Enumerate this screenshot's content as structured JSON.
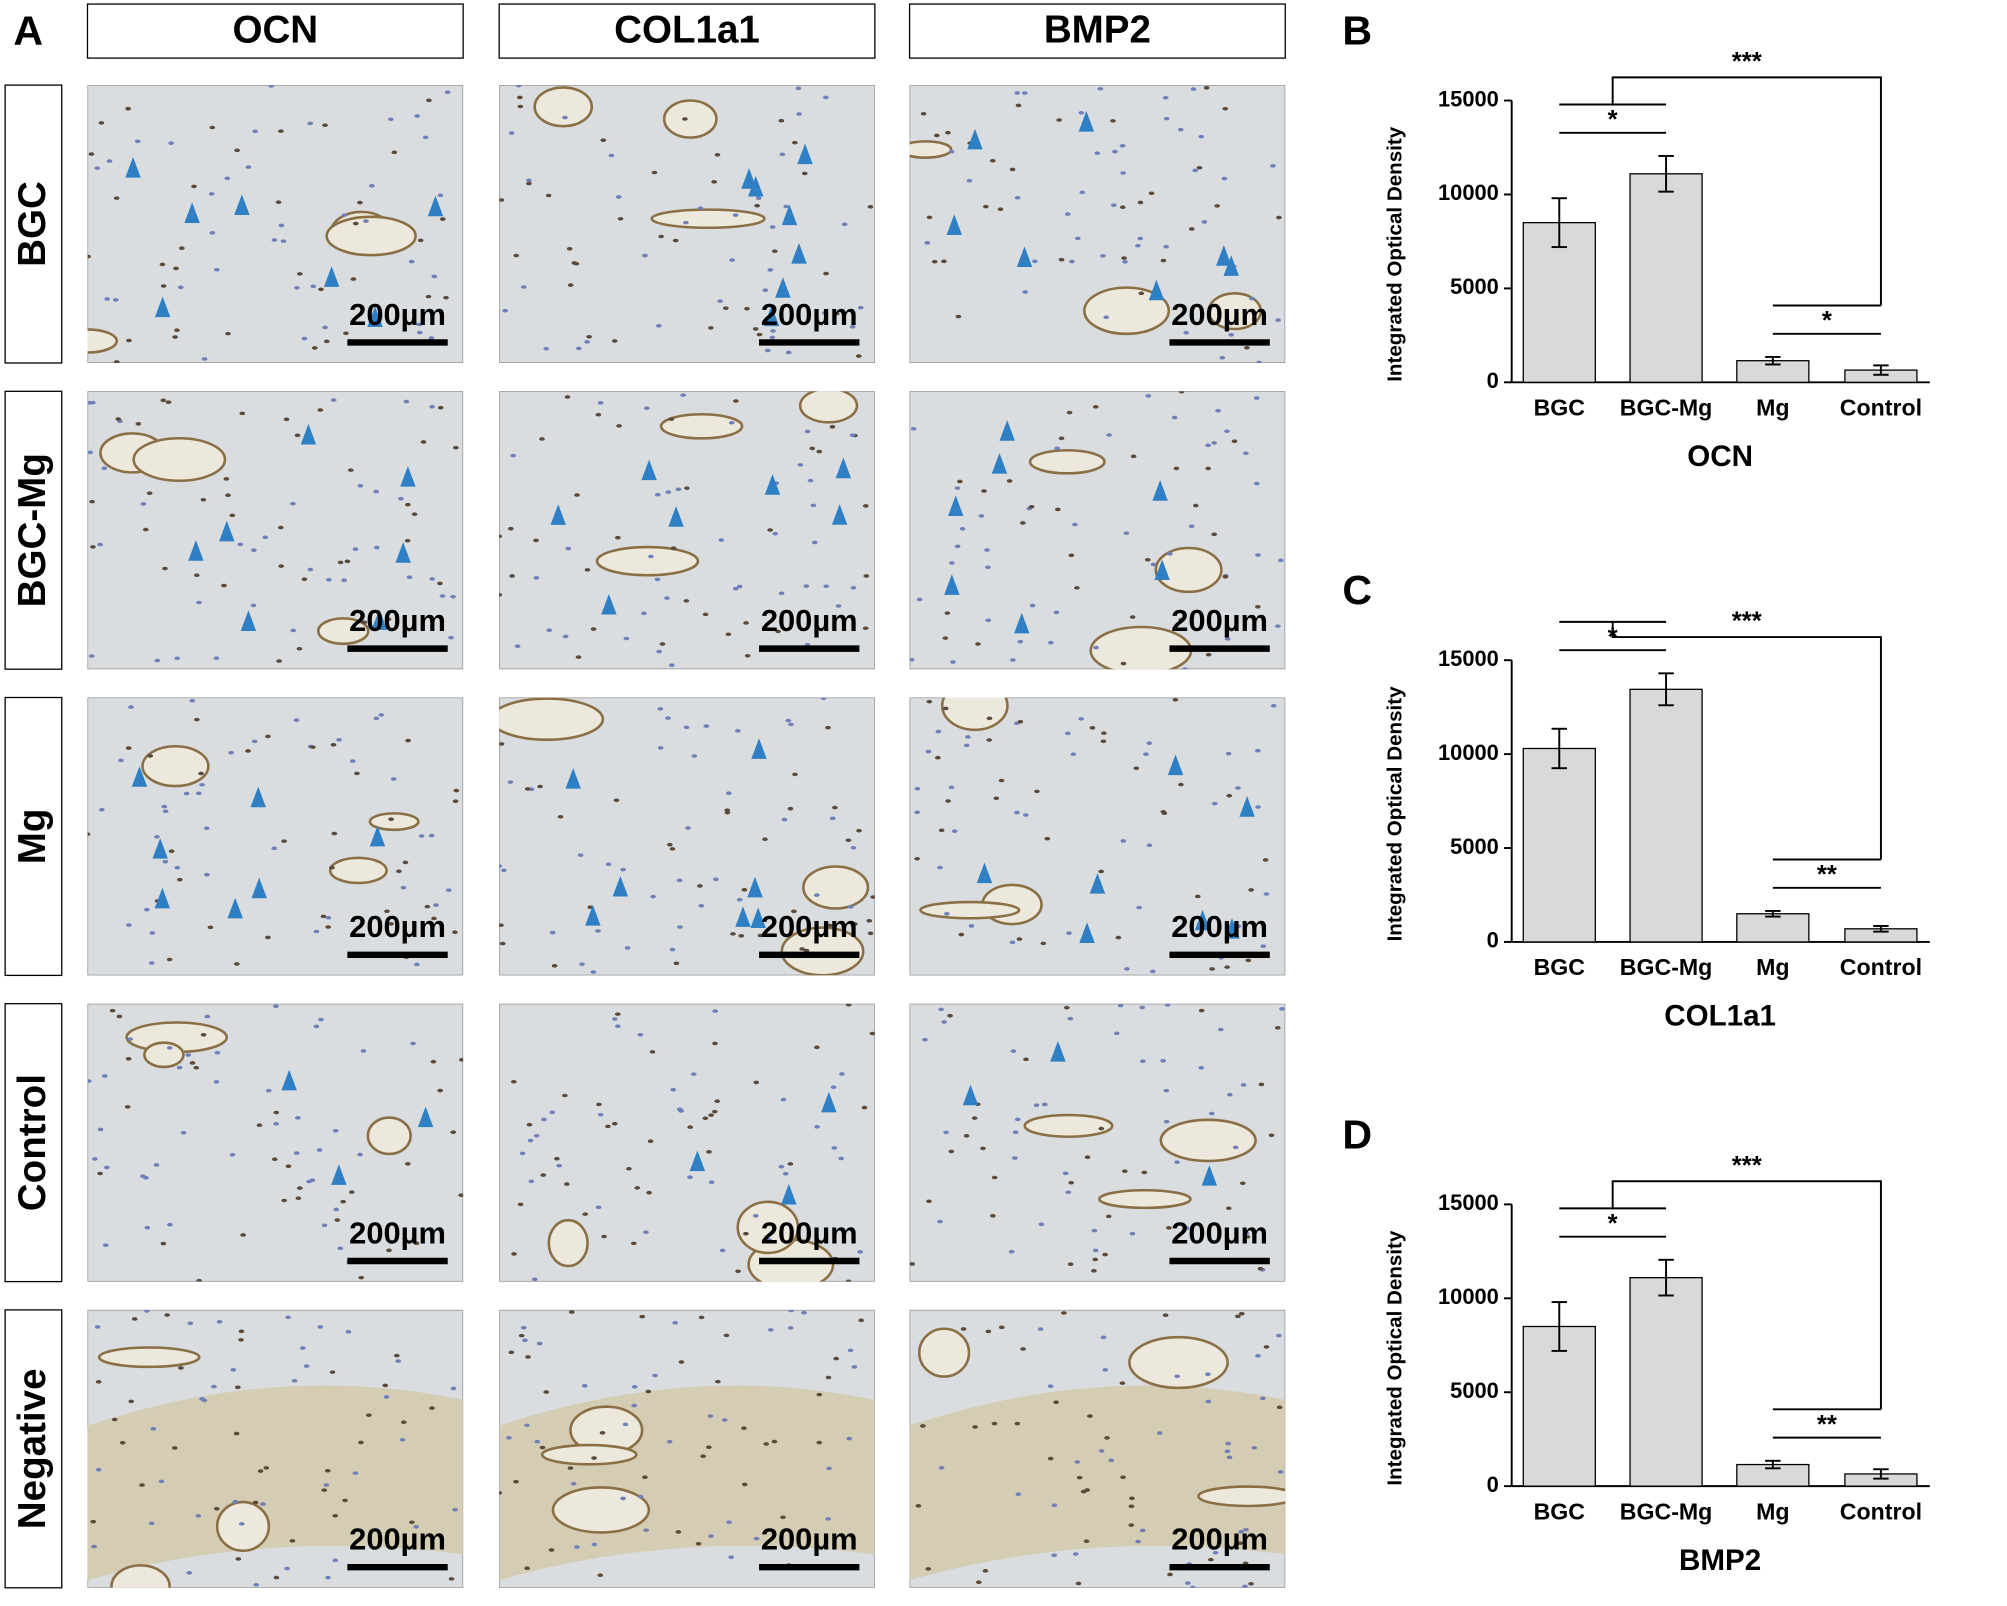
{
  "panel_a": {
    "label": "A",
    "columns": [
      "OCN",
      "COL1a1",
      "BMP2"
    ],
    "rows": [
      "BGC",
      "BGC-Mg",
      "Mg",
      "Control",
      "Negative"
    ],
    "scale_bar": "200µm"
  },
  "chart_data": [
    {
      "type": "bar",
      "panel": "B",
      "x_label": "OCN",
      "y_label": "Integrated Optical Density",
      "categories": [
        "BGC",
        "BGC-Mg",
        "Mg",
        "Control"
      ],
      "values": [
        8500,
        11100,
        1150,
        650
      ],
      "errors": [
        1300,
        950,
        200,
        250
      ],
      "color": "#d9d9d9",
      "ylim": [
        0,
        15000
      ],
      "yticks": [
        0,
        5000,
        10000,
        15000
      ],
      "pairs": [
        {
          "between": [
            "BGC",
            "BGC-Mg"
          ],
          "label": "*"
        },
        {
          "between": [
            "Mg",
            "Control"
          ],
          "label": "*"
        }
      ],
      "group_comparison": {
        "between": [
          [
            "BGC",
            "BGC-Mg"
          ],
          [
            "Mg",
            "Control"
          ]
        ],
        "label": "***"
      }
    },
    {
      "type": "bar",
      "panel": "C",
      "x_label": "COL1a1",
      "y_label": "Integrated Optical Density",
      "categories": [
        "BGC",
        "BGC-Mg",
        "Mg",
        "Control"
      ],
      "values": [
        10300,
        13450,
        1500,
        700
      ],
      "errors": [
        1050,
        850,
        150,
        150
      ],
      "color": "#d9d9d9",
      "ylim": [
        0,
        15000
      ],
      "yticks": [
        0,
        5000,
        10000,
        15000
      ],
      "pairs": [
        {
          "between": [
            "BGC",
            "BGC-Mg"
          ],
          "label": "*"
        },
        {
          "between": [
            "Mg",
            "Control"
          ],
          "label": "**"
        }
      ],
      "group_comparison": {
        "between": [
          [
            "BGC",
            "BGC-Mg"
          ],
          [
            "Mg",
            "Control"
          ]
        ],
        "label": "***"
      }
    },
    {
      "type": "bar",
      "panel": "D",
      "x_label": "BMP2",
      "y_label": "Integrated Optical Density",
      "categories": [
        "BGC",
        "BGC-Mg",
        "Mg",
        "Control"
      ],
      "values": [
        8500,
        11100,
        1150,
        650
      ],
      "errors": [
        1300,
        950,
        200,
        250
      ],
      "color": "#d9d9d9",
      "ylim": [
        0,
        15000
      ],
      "yticks": [
        0,
        5000,
        10000,
        15000
      ],
      "pairs": [
        {
          "between": [
            "BGC",
            "BGC-Mg"
          ],
          "label": "*"
        },
        {
          "between": [
            "Mg",
            "Control"
          ],
          "label": "**"
        }
      ],
      "group_comparison": {
        "between": [
          [
            "BGC",
            "BGC-Mg"
          ],
          [
            "Mg",
            "Control"
          ]
        ],
        "label": "***"
      }
    }
  ]
}
